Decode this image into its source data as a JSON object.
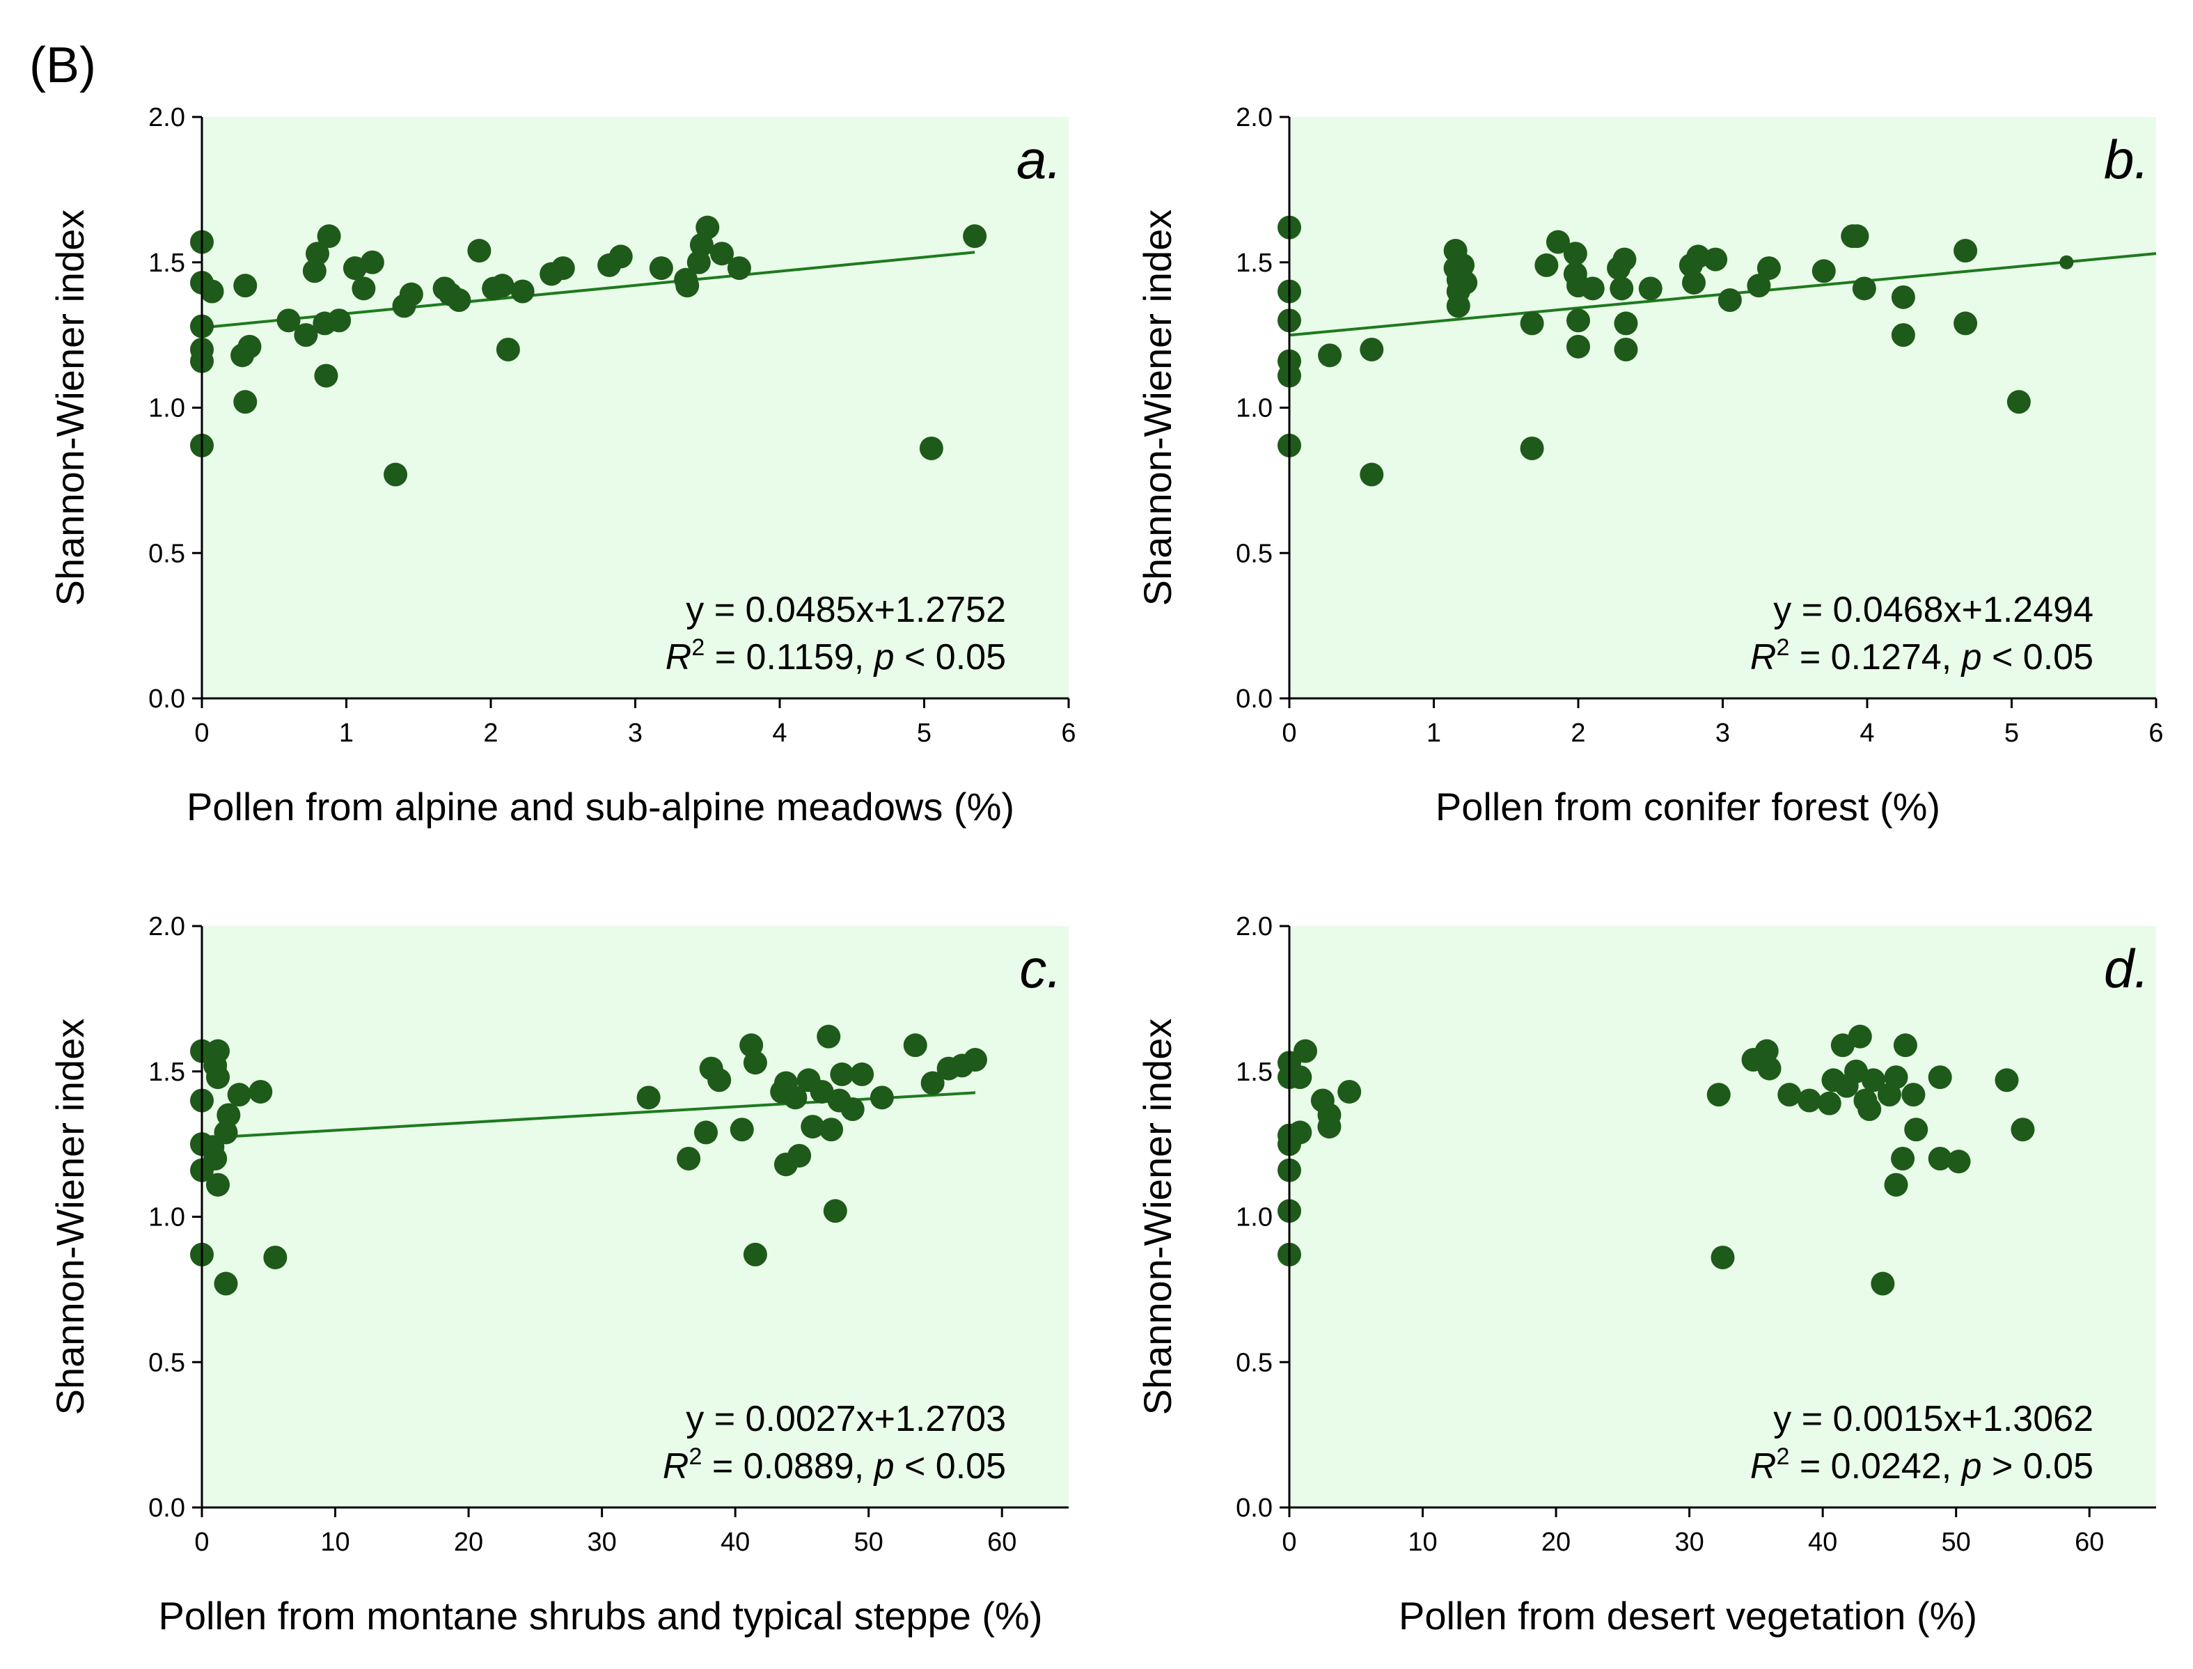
{
  "figure_label": "(B)",
  "colors": {
    "plot_bg": "#e9fbe9",
    "marker": "#1e5a19",
    "fit_line": "#1e7a1e"
  },
  "chart_data": [
    {
      "type": "scatter",
      "panel": "a.",
      "xlabel": "Pollen from alpine and sub-alpine meadows (%)",
      "ylabel": "Shannon-Wiener index",
      "xlim": [
        0,
        6
      ],
      "ylim": [
        0,
        2
      ],
      "xticks": [
        0,
        1,
        2,
        3,
        4,
        5,
        6
      ],
      "yticks": [
        0.0,
        0.5,
        1.0,
        1.5,
        2.0
      ],
      "xtick_labels": [
        "0",
        "1",
        "2",
        "3",
        "4",
        "5",
        "6"
      ],
      "ytick_labels": [
        "0.0",
        "0.5",
        "1.0",
        "1.5",
        "2.0"
      ],
      "equation": "y = 0.0485x+1.2752",
      "r2_label": "R",
      "r2_sup": "2",
      "r2_value": " = 0.1159, ",
      "p_label": "p",
      "p_value": " < 0.05",
      "fit": {
        "slope": 0.0485,
        "intercept": 1.2752,
        "x_range": [
          0,
          5.35
        ]
      },
      "points": [
        [
          0.0,
          1.57
        ],
        [
          0.0,
          1.43
        ],
        [
          0.0,
          1.28
        ],
        [
          0.0,
          1.2
        ],
        [
          0.0,
          1.16
        ],
        [
          0.0,
          0.87
        ],
        [
          0.07,
          1.4
        ],
        [
          0.28,
          1.18
        ],
        [
          0.3,
          1.42
        ],
        [
          0.33,
          1.21
        ],
        [
          0.3,
          1.02
        ],
        [
          0.6,
          1.3
        ],
        [
          0.72,
          1.25
        ],
        [
          0.78,
          1.47
        ],
        [
          0.8,
          1.53
        ],
        [
          0.85,
          1.29
        ],
        [
          0.86,
          1.11
        ],
        [
          0.88,
          1.59
        ],
        [
          0.95,
          1.3
        ],
        [
          1.06,
          1.48
        ],
        [
          1.12,
          1.41
        ],
        [
          1.18,
          1.5
        ],
        [
          1.34,
          0.77
        ],
        [
          1.4,
          1.35
        ],
        [
          1.45,
          1.39
        ],
        [
          1.68,
          1.41
        ],
        [
          1.72,
          1.39
        ],
        [
          1.78,
          1.37
        ],
        [
          1.92,
          1.54
        ],
        [
          2.02,
          1.41
        ],
        [
          2.08,
          1.42
        ],
        [
          2.12,
          1.2
        ],
        [
          2.22,
          1.4
        ],
        [
          2.42,
          1.46
        ],
        [
          2.5,
          1.48
        ],
        [
          2.82,
          1.49
        ],
        [
          2.9,
          1.52
        ],
        [
          3.18,
          1.48
        ],
        [
          3.35,
          1.44
        ],
        [
          3.36,
          1.42
        ],
        [
          3.44,
          1.5
        ],
        [
          3.46,
          1.56
        ],
        [
          3.5,
          1.62
        ],
        [
          3.6,
          1.53
        ],
        [
          3.72,
          1.48
        ],
        [
          5.05,
          0.86
        ],
        [
          5.35,
          1.59
        ]
      ]
    },
    {
      "type": "scatter",
      "panel": "b.",
      "xlabel": "Pollen from conifer forest (%)",
      "ylabel": "Shannon-Wiener index",
      "xlim": [
        0,
        6
      ],
      "ylim": [
        0,
        2
      ],
      "xticks": [
        0,
        1,
        2,
        3,
        4,
        5,
        6
      ],
      "yticks": [
        0.0,
        0.5,
        1.0,
        1.5,
        2.0
      ],
      "xtick_labels": [
        "0",
        "1",
        "2",
        "3",
        "4",
        "5",
        "6"
      ],
      "ytick_labels": [
        "0.0",
        "0.5",
        "1.0",
        "1.5",
        "2.0"
      ],
      "equation": "y = 0.0468x+1.2494",
      "r2_label": "R",
      "r2_sup": "2",
      "r2_value": " = 0.1274, ",
      "p_label": "p",
      "p_value": " < 0.05",
      "fit": {
        "slope": 0.0468,
        "intercept": 1.2494,
        "x_range": [
          0,
          6
        ]
      },
      "points": [
        [
          0.0,
          1.62
        ],
        [
          0.0,
          1.4
        ],
        [
          0.0,
          1.3
        ],
        [
          0.0,
          1.16
        ],
        [
          0.0,
          1.11
        ],
        [
          0.0,
          0.87
        ],
        [
          0.28,
          1.18
        ],
        [
          0.57,
          1.2
        ],
        [
          0.57,
          0.77
        ],
        [
          1.15,
          1.54
        ],
        [
          1.15,
          1.48
        ],
        [
          1.17,
          1.44
        ],
        [
          1.17,
          1.4
        ],
        [
          1.17,
          1.35
        ],
        [
          1.2,
          1.49
        ],
        [
          1.22,
          1.43
        ],
        [
          1.68,
          1.29
        ],
        [
          1.68,
          0.86
        ],
        [
          1.78,
          1.49
        ],
        [
          1.86,
          1.57
        ],
        [
          1.98,
          1.53
        ],
        [
          1.98,
          1.46
        ],
        [
          2.0,
          1.42
        ],
        [
          2.0,
          1.3
        ],
        [
          2.0,
          1.21
        ],
        [
          2.1,
          1.41
        ],
        [
          2.28,
          1.48
        ],
        [
          2.3,
          1.41
        ],
        [
          2.32,
          1.51
        ],
        [
          2.33,
          1.29
        ],
        [
          2.33,
          1.2
        ],
        [
          2.5,
          1.41
        ],
        [
          2.78,
          1.49
        ],
        [
          2.8,
          1.43
        ],
        [
          2.83,
          1.52
        ],
        [
          2.95,
          1.51
        ],
        [
          3.05,
          1.37
        ],
        [
          3.25,
          1.42
        ],
        [
          3.32,
          1.48
        ],
        [
          3.7,
          1.47
        ],
        [
          3.9,
          1.59
        ],
        [
          3.93,
          1.59
        ],
        [
          3.98,
          1.41
        ],
        [
          4.25,
          1.38
        ],
        [
          4.25,
          1.25
        ],
        [
          4.68,
          1.54
        ],
        [
          4.68,
          1.29
        ],
        [
          5.05,
          1.02
        ],
        [
          5.38,
          1.5
        ]
      ],
      "small_points": [
        [
          5.38,
          1.5
        ]
      ]
    },
    {
      "type": "scatter",
      "panel": "c.",
      "xlabel": "Pollen from montane shrubs and typical steppe (%)",
      "ylabel": "Shannon-Wiener index",
      "xlim": [
        0,
        65
      ],
      "ylim": [
        0,
        2
      ],
      "xticks": [
        0,
        10,
        20,
        30,
        40,
        50,
        60
      ],
      "yticks": [
        0.0,
        0.5,
        1.0,
        1.5,
        2.0
      ],
      "xtick_labels": [
        "0",
        "10",
        "20",
        "30",
        "40",
        "50",
        "60"
      ],
      "ytick_labels": [
        "0.0",
        "0.5",
        "1.0",
        "1.5",
        "2.0"
      ],
      "equation": "y = 0.0027x+1.2703",
      "r2_label": "R",
      "r2_sup": "2",
      "r2_value": " = 0.0889, ",
      "p_label": "p",
      "p_value": " < 0.05",
      "fit": {
        "slope": 0.0027,
        "intercept": 1.2703,
        "x_range": [
          0,
          58
        ]
      },
      "points": [
        [
          0.0,
          1.57
        ],
        [
          0.0,
          1.4
        ],
        [
          0.0,
          1.25
        ],
        [
          0.0,
          1.16
        ],
        [
          0.0,
          0.87
        ],
        [
          0.8,
          1.24
        ],
        [
          1.0,
          1.52
        ],
        [
          1.0,
          1.2
        ],
        [
          1.2,
          1.57
        ],
        [
          1.2,
          1.48
        ],
        [
          1.2,
          1.11
        ],
        [
          1.8,
          1.29
        ],
        [
          1.8,
          0.77
        ],
        [
          2.0,
          1.35
        ],
        [
          2.8,
          1.42
        ],
        [
          4.4,
          1.43
        ],
        [
          5.5,
          0.86
        ],
        [
          33.5,
          1.41
        ],
        [
          36.5,
          1.2
        ],
        [
          37.8,
          1.29
        ],
        [
          38.2,
          1.51
        ],
        [
          38.8,
          1.47
        ],
        [
          40.5,
          1.3
        ],
        [
          41.2,
          1.59
        ],
        [
          41.5,
          1.53
        ],
        [
          41.5,
          0.87
        ],
        [
          43.5,
          1.43
        ],
        [
          43.8,
          1.18
        ],
        [
          43.8,
          1.46
        ],
        [
          44.5,
          1.41
        ],
        [
          44.8,
          1.21
        ],
        [
          45.5,
          1.47
        ],
        [
          45.8,
          1.31
        ],
        [
          46.5,
          1.43
        ],
        [
          47.0,
          1.62
        ],
        [
          47.2,
          1.3
        ],
        [
          47.5,
          1.02
        ],
        [
          47.8,
          1.4
        ],
        [
          48.0,
          1.49
        ],
        [
          48.8,
          1.37
        ],
        [
          49.5,
          1.49
        ],
        [
          51.0,
          1.41
        ],
        [
          53.5,
          1.59
        ],
        [
          54.8,
          1.46
        ],
        [
          56.0,
          1.51
        ],
        [
          57.0,
          1.52
        ],
        [
          58.0,
          1.54
        ]
      ]
    },
    {
      "type": "scatter",
      "panel": "d.",
      "xlabel": "Pollen from desert vegetation (%)",
      "ylabel": "Shannon-Wiener index",
      "xlim": [
        0,
        65
      ],
      "ylim": [
        0,
        2
      ],
      "xticks": [
        0,
        10,
        20,
        30,
        40,
        50,
        60
      ],
      "yticks": [
        0.0,
        0.5,
        1.0,
        1.5,
        2.0
      ],
      "xtick_labels": [
        "0",
        "10",
        "20",
        "30",
        "40",
        "50",
        "60"
      ],
      "ytick_labels": [
        "0.0",
        "0.5",
        "1.0",
        "1.5",
        "2.0"
      ],
      "equation": "y = 0.0015x+1.3062",
      "r2_label": "R",
      "r2_sup": "2",
      "r2_value": " = 0.0242, ",
      "p_label": "p",
      "p_value": " > 0.05",
      "fit": null,
      "points": [
        [
          0.0,
          1.53
        ],
        [
          0.0,
          1.48
        ],
        [
          0.0,
          1.28
        ],
        [
          0.0,
          1.25
        ],
        [
          0.0,
          1.16
        ],
        [
          0.0,
          1.02
        ],
        [
          0.0,
          0.87
        ],
        [
          0.8,
          1.48
        ],
        [
          0.8,
          1.29
        ],
        [
          1.2,
          1.57
        ],
        [
          2.5,
          1.4
        ],
        [
          3.0,
          1.35
        ],
        [
          3.0,
          1.31
        ],
        [
          4.5,
          1.43
        ],
        [
          32.2,
          1.42
        ],
        [
          32.5,
          0.86
        ],
        [
          34.8,
          1.54
        ],
        [
          35.8,
          1.57
        ],
        [
          36.0,
          1.51
        ],
        [
          37.5,
          1.42
        ],
        [
          39.0,
          1.4
        ],
        [
          40.5,
          1.39
        ],
        [
          40.8,
          1.47
        ],
        [
          41.5,
          1.59
        ],
        [
          41.8,
          1.45
        ],
        [
          42.5,
          1.5
        ],
        [
          42.8,
          1.62
        ],
        [
          43.2,
          1.4
        ],
        [
          43.5,
          1.37
        ],
        [
          43.8,
          1.47
        ],
        [
          44.5,
          0.77
        ],
        [
          45.0,
          1.42
        ],
        [
          45.5,
          1.48
        ],
        [
          45.5,
          1.11
        ],
        [
          46.0,
          1.2
        ],
        [
          46.2,
          1.59
        ],
        [
          46.8,
          1.42
        ],
        [
          47.0,
          1.3
        ],
        [
          48.8,
          1.48
        ],
        [
          48.8,
          1.2
        ],
        [
          50.2,
          1.19
        ],
        [
          53.8,
          1.47
        ],
        [
          55.0,
          1.3
        ]
      ]
    }
  ]
}
